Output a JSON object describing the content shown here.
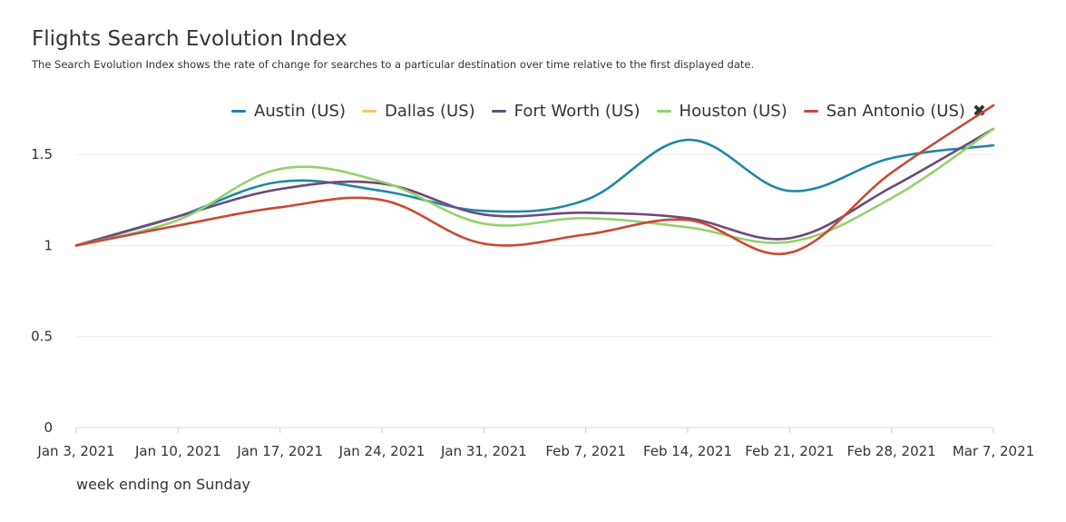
{
  "title": "Flights Search Evolution Index",
  "subtitle": "The Search Evolution Index shows the rate of change for searches to a particular destination over time relative to the first displayed date.",
  "legend_close_icon": "close-icon",
  "chart_data": {
    "type": "line",
    "title": "Flights Search Evolution Index",
    "xlabel": "week ending on Sunday",
    "ylabel": "",
    "x": [
      "Jan 3, 2021",
      "Jan 10, 2021",
      "Jan 17, 2021",
      "Jan 24, 2021",
      "Jan 31, 2021",
      "Feb 7, 2021",
      "Feb 14, 2021",
      "Feb 21, 2021",
      "Feb 28, 2021",
      "Mar 7, 2021"
    ],
    "ylim": [
      0,
      1.75
    ],
    "yticks": [
      0,
      0.5,
      1,
      1.5
    ],
    "ytick_labels": [
      "0",
      "0.5",
      "1",
      "1.5"
    ],
    "grid": true,
    "legend_position": "top-right",
    "series": [
      {
        "name": "Austin (US)",
        "color": "#1f86a8",
        "values": [
          1.0,
          1.16,
          1.35,
          1.3,
          1.19,
          1.25,
          1.58,
          1.3,
          1.48,
          1.55
        ]
      },
      {
        "name": "Dallas (US)",
        "color": "#f6c66d",
        "values": [
          1.0,
          1.16,
          1.31,
          1.34,
          1.17,
          1.18,
          1.15,
          1.04,
          1.32,
          1.64
        ]
      },
      {
        "name": "Fort Worth (US)",
        "color": "#6b4c7f",
        "values": [
          1.0,
          1.16,
          1.31,
          1.34,
          1.17,
          1.18,
          1.15,
          1.04,
          1.32,
          1.64
        ]
      },
      {
        "name": "Houston (US)",
        "color": "#94d16a",
        "values": [
          1.0,
          1.14,
          1.42,
          1.35,
          1.12,
          1.15,
          1.1,
          1.02,
          1.26,
          1.64
        ]
      },
      {
        "name": "San Antonio (US)",
        "color": "#c94a33",
        "values": [
          1.0,
          1.11,
          1.21,
          1.25,
          1.01,
          1.06,
          1.14,
          0.96,
          1.4,
          1.77
        ]
      }
    ]
  }
}
